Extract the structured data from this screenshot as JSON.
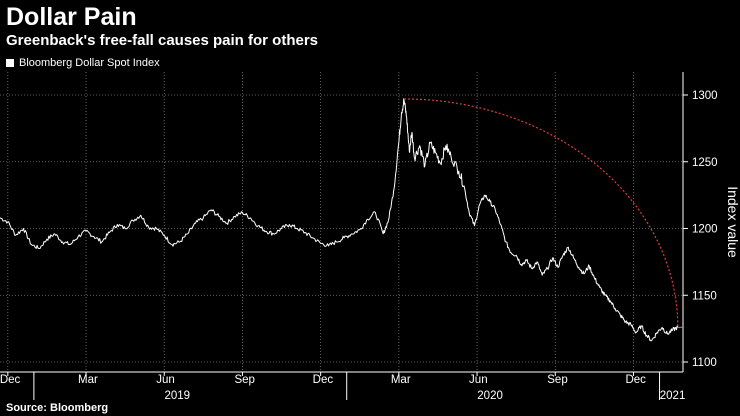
{
  "header": {
    "title": "Dollar Pain",
    "subtitle": "Greenback's free-fall causes pain for others",
    "source": "Source: Bloomberg"
  },
  "chart_data": {
    "type": "line",
    "title": "Dollar Pain",
    "subtitle": "Greenback's free-fall causes pain for others",
    "legend": [
      "Bloomberg Dollar Spot Index"
    ],
    "ylabel": "Index value",
    "ylim": [
      1100,
      1305
    ],
    "yticks": [
      1100,
      1150,
      1200,
      1250,
      1300
    ],
    "x_month_ticks": [
      {
        "label": "Dec",
        "t": 0
      },
      {
        "label": "Mar",
        "t": 3
      },
      {
        "label": "Jun",
        "t": 6
      },
      {
        "label": "Sep",
        "t": 9
      },
      {
        "label": "Dec",
        "t": 12
      },
      {
        "label": "Mar",
        "t": 15
      },
      {
        "label": "Jun",
        "t": 18
      },
      {
        "label": "Sep",
        "t": 21
      },
      {
        "label": "Dec",
        "t": 24
      }
    ],
    "x_year_labels": [
      {
        "label": "2019",
        "t": 6.5
      },
      {
        "label": "2020",
        "t": 18.5
      },
      {
        "label": "2021",
        "t": 25.5
      }
    ],
    "x_year_dividers": [
      1,
      13,
      25
    ],
    "xlim": [
      -0.3,
      25.9
    ],
    "x_unit": "months since 1 Dec 2018",
    "series": [
      {
        "name": "Bloomberg Dollar Spot Index",
        "color": "#ffffff",
        "points": [
          [
            -0.3,
            1208
          ],
          [
            0.0,
            1205
          ],
          [
            0.3,
            1195
          ],
          [
            0.6,
            1200
          ],
          [
            0.9,
            1188
          ],
          [
            1.2,
            1185
          ],
          [
            1.5,
            1192
          ],
          [
            1.8,
            1196
          ],
          [
            2.1,
            1190
          ],
          [
            2.4,
            1188
          ],
          [
            2.7,
            1194
          ],
          [
            3.0,
            1198
          ],
          [
            3.3,
            1194
          ],
          [
            3.6,
            1190
          ],
          [
            3.9,
            1197
          ],
          [
            4.2,
            1203
          ],
          [
            4.5,
            1200
          ],
          [
            4.8,
            1206
          ],
          [
            5.1,
            1210
          ],
          [
            5.4,
            1201
          ],
          [
            5.7,
            1200
          ],
          [
            6.0,
            1195
          ],
          [
            6.3,
            1188
          ],
          [
            6.6,
            1190
          ],
          [
            6.9,
            1196
          ],
          [
            7.2,
            1204
          ],
          [
            7.5,
            1208
          ],
          [
            7.8,
            1214
          ],
          [
            8.1,
            1209
          ],
          [
            8.4,
            1204
          ],
          [
            8.7,
            1209
          ],
          [
            9.0,
            1212
          ],
          [
            9.3,
            1208
          ],
          [
            9.6,
            1202
          ],
          [
            9.9,
            1198
          ],
          [
            10.2,
            1196
          ],
          [
            10.5,
            1200
          ],
          [
            10.8,
            1203
          ],
          [
            11.1,
            1200
          ],
          [
            11.4,
            1197
          ],
          [
            11.7,
            1193
          ],
          [
            12.0,
            1189
          ],
          [
            12.3,
            1187
          ],
          [
            12.6,
            1190
          ],
          [
            12.9,
            1193
          ],
          [
            13.2,
            1196
          ],
          [
            13.5,
            1199
          ],
          [
            13.8,
            1207
          ],
          [
            14.1,
            1212
          ],
          [
            14.4,
            1196
          ],
          [
            14.6,
            1206
          ],
          [
            14.8,
            1228
          ],
          [
            15.0,
            1265
          ],
          [
            15.1,
            1287
          ],
          [
            15.2,
            1296
          ],
          [
            15.3,
            1283
          ],
          [
            15.4,
            1258
          ],
          [
            15.5,
            1272
          ],
          [
            15.6,
            1253
          ],
          [
            15.8,
            1262
          ],
          [
            16.0,
            1247
          ],
          [
            16.2,
            1264
          ],
          [
            16.4,
            1257
          ],
          [
            16.6,
            1249
          ],
          [
            16.8,
            1262
          ],
          [
            17.0,
            1254
          ],
          [
            17.3,
            1243
          ],
          [
            17.5,
            1232
          ],
          [
            17.7,
            1212
          ],
          [
            17.9,
            1202
          ],
          [
            18.1,
            1218
          ],
          [
            18.3,
            1225
          ],
          [
            18.5,
            1220
          ],
          [
            18.7,
            1214
          ],
          [
            18.9,
            1203
          ],
          [
            19.1,
            1190
          ],
          [
            19.3,
            1182
          ],
          [
            19.5,
            1180
          ],
          [
            19.7,
            1173
          ],
          [
            19.9,
            1176
          ],
          [
            20.1,
            1170
          ],
          [
            20.3,
            1175
          ],
          [
            20.5,
            1165
          ],
          [
            20.7,
            1170
          ],
          [
            20.9,
            1178
          ],
          [
            21.1,
            1171
          ],
          [
            21.3,
            1180
          ],
          [
            21.5,
            1186
          ],
          [
            21.7,
            1178
          ],
          [
            21.9,
            1171
          ],
          [
            22.1,
            1166
          ],
          [
            22.3,
            1172
          ],
          [
            22.5,
            1163
          ],
          [
            22.7,
            1156
          ],
          [
            22.9,
            1150
          ],
          [
            23.1,
            1146
          ],
          [
            23.3,
            1140
          ],
          [
            23.5,
            1135
          ],
          [
            23.7,
            1130
          ],
          [
            23.9,
            1128
          ],
          [
            24.1,
            1122
          ],
          [
            24.3,
            1127
          ],
          [
            24.5,
            1120
          ],
          [
            24.7,
            1116
          ],
          [
            24.9,
            1122
          ],
          [
            25.1,
            1126
          ],
          [
            25.3,
            1121
          ],
          [
            25.5,
            1124
          ],
          [
            25.7,
            1126
          ]
        ]
      }
    ],
    "annotations": [
      {
        "type": "dotted-arc",
        "color": "#e23b3b",
        "from": [
          15.2,
          1297
        ],
        "to": [
          25.7,
          1126
        ]
      },
      {
        "type": "reference-line",
        "color": "#999999",
        "y": 1126,
        "from_t": 25.7
      }
    ]
  }
}
